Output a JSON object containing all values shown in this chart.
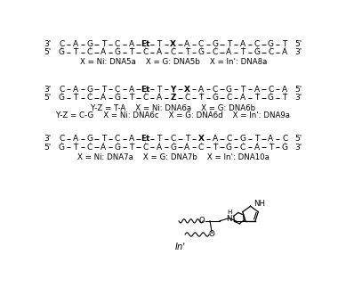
{
  "background_color": "#ffffff",
  "seq1_top": [
    "3'",
    "C",
    "A",
    "G",
    "T",
    "C",
    "A",
    "Et",
    "T",
    "X",
    "A",
    "C",
    "G",
    "T",
    "A",
    "C",
    "G",
    "T",
    "5'"
  ],
  "seq1_bot": [
    "5'",
    "G",
    "T",
    "C",
    "A",
    "G",
    "T",
    "C",
    "A",
    "C",
    "T",
    "G",
    "C",
    "A",
    "T",
    "G",
    "C",
    "A",
    "3'"
  ],
  "seq1_lbl": "X = Ni: DNA5a    X = G: DNA5b    X = In': DNA8a",
  "seq2_top": [
    "3'",
    "C",
    "A",
    "G",
    "T",
    "C",
    "A",
    "Et",
    "T",
    "Y",
    "X",
    "A",
    "C",
    "G",
    "T",
    "A",
    "C",
    "A",
    "5'"
  ],
  "seq2_bot": [
    "5'",
    "G",
    "T",
    "C",
    "A",
    "G",
    "T",
    "C",
    "A",
    "Z",
    "C",
    "T",
    "G",
    "C",
    "A",
    "T",
    "G",
    "T",
    "3'"
  ],
  "seq2_lbl1": "Y-Z = T-A    X = Ni: DNA6a    X = G: DNA6b",
  "seq2_lbl2": "Y-Z = C-G    X = Ni: DNA6c    X = G: DNA6d    X = In': DNA9a",
  "seq3_top": [
    "3'",
    "C",
    "A",
    "G",
    "T",
    "C",
    "A",
    "Et",
    "T",
    "C",
    "T",
    "X",
    "A",
    "C",
    "G",
    "T",
    "A",
    "C",
    "5'"
  ],
  "seq3_bot": [
    "5'",
    "G",
    "T",
    "C",
    "A",
    "G",
    "T",
    "C",
    "A",
    "G",
    "A",
    "C",
    "T",
    "G",
    "C",
    "A",
    "T",
    "G",
    "3'"
  ],
  "seq3_lbl": "X = Ni: DNA7a    X = G: DNA7b    X = In': DNA10a",
  "inprime_lbl": "In'",
  "fs": 6.5,
  "fl": 6.2
}
